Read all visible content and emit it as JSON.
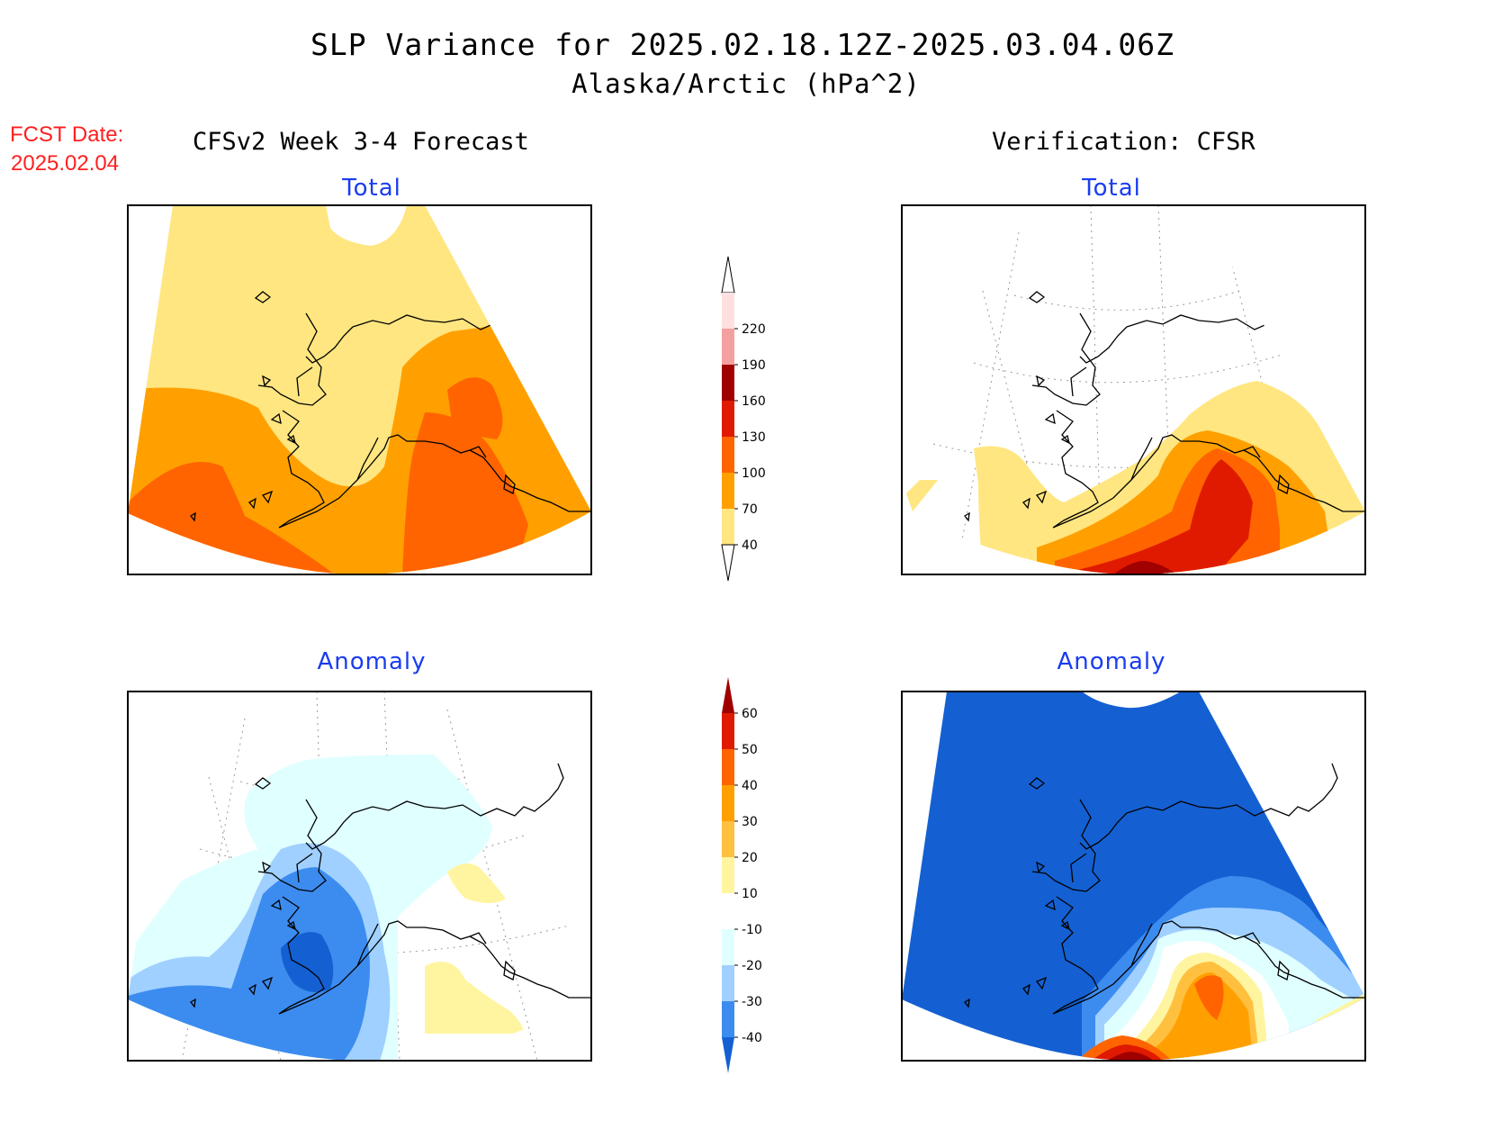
{
  "header": {
    "title": "SLP Variance for 2025.02.18.12Z-2025.03.04.06Z",
    "subtitle": "Alaska/Arctic (hPa^2)",
    "fcst_date_label": "FCST Date:",
    "fcst_date_value": "2025.02.04",
    "left_column_title": "CFSv2 Week 3-4 Forecast",
    "right_column_title": "Verification: CFSR"
  },
  "panels": {
    "forecast_total": {
      "title": "Total"
    },
    "verification_total": {
      "title": "Total"
    },
    "forecast_anomaly": {
      "title": "Anomaly"
    },
    "verification_anomaly": {
      "title": "Anomaly"
    }
  },
  "colorbars": {
    "total": {
      "labels": [
        "220",
        "190",
        "160",
        "130",
        "100",
        "70",
        "40"
      ],
      "colors": [
        "#ffe0e0",
        "#f4a0a0",
        "#a00000",
        "#e01a00",
        "#ff6400",
        "#ffa000",
        "#ffe680"
      ]
    },
    "anomaly": {
      "labels": [
        "60",
        "50",
        "40",
        "30",
        "20",
        "10",
        "-10",
        "-20",
        "-30",
        "-40"
      ],
      "colors": [
        "#a00000",
        "#e01a00",
        "#ff6400",
        "#ffa000",
        "#ffc040",
        "#fff5a0",
        "#ffffff",
        "#e0ffff",
        "#a0d0ff",
        "#3c8cf0",
        "#1460d2"
      ]
    }
  }
}
